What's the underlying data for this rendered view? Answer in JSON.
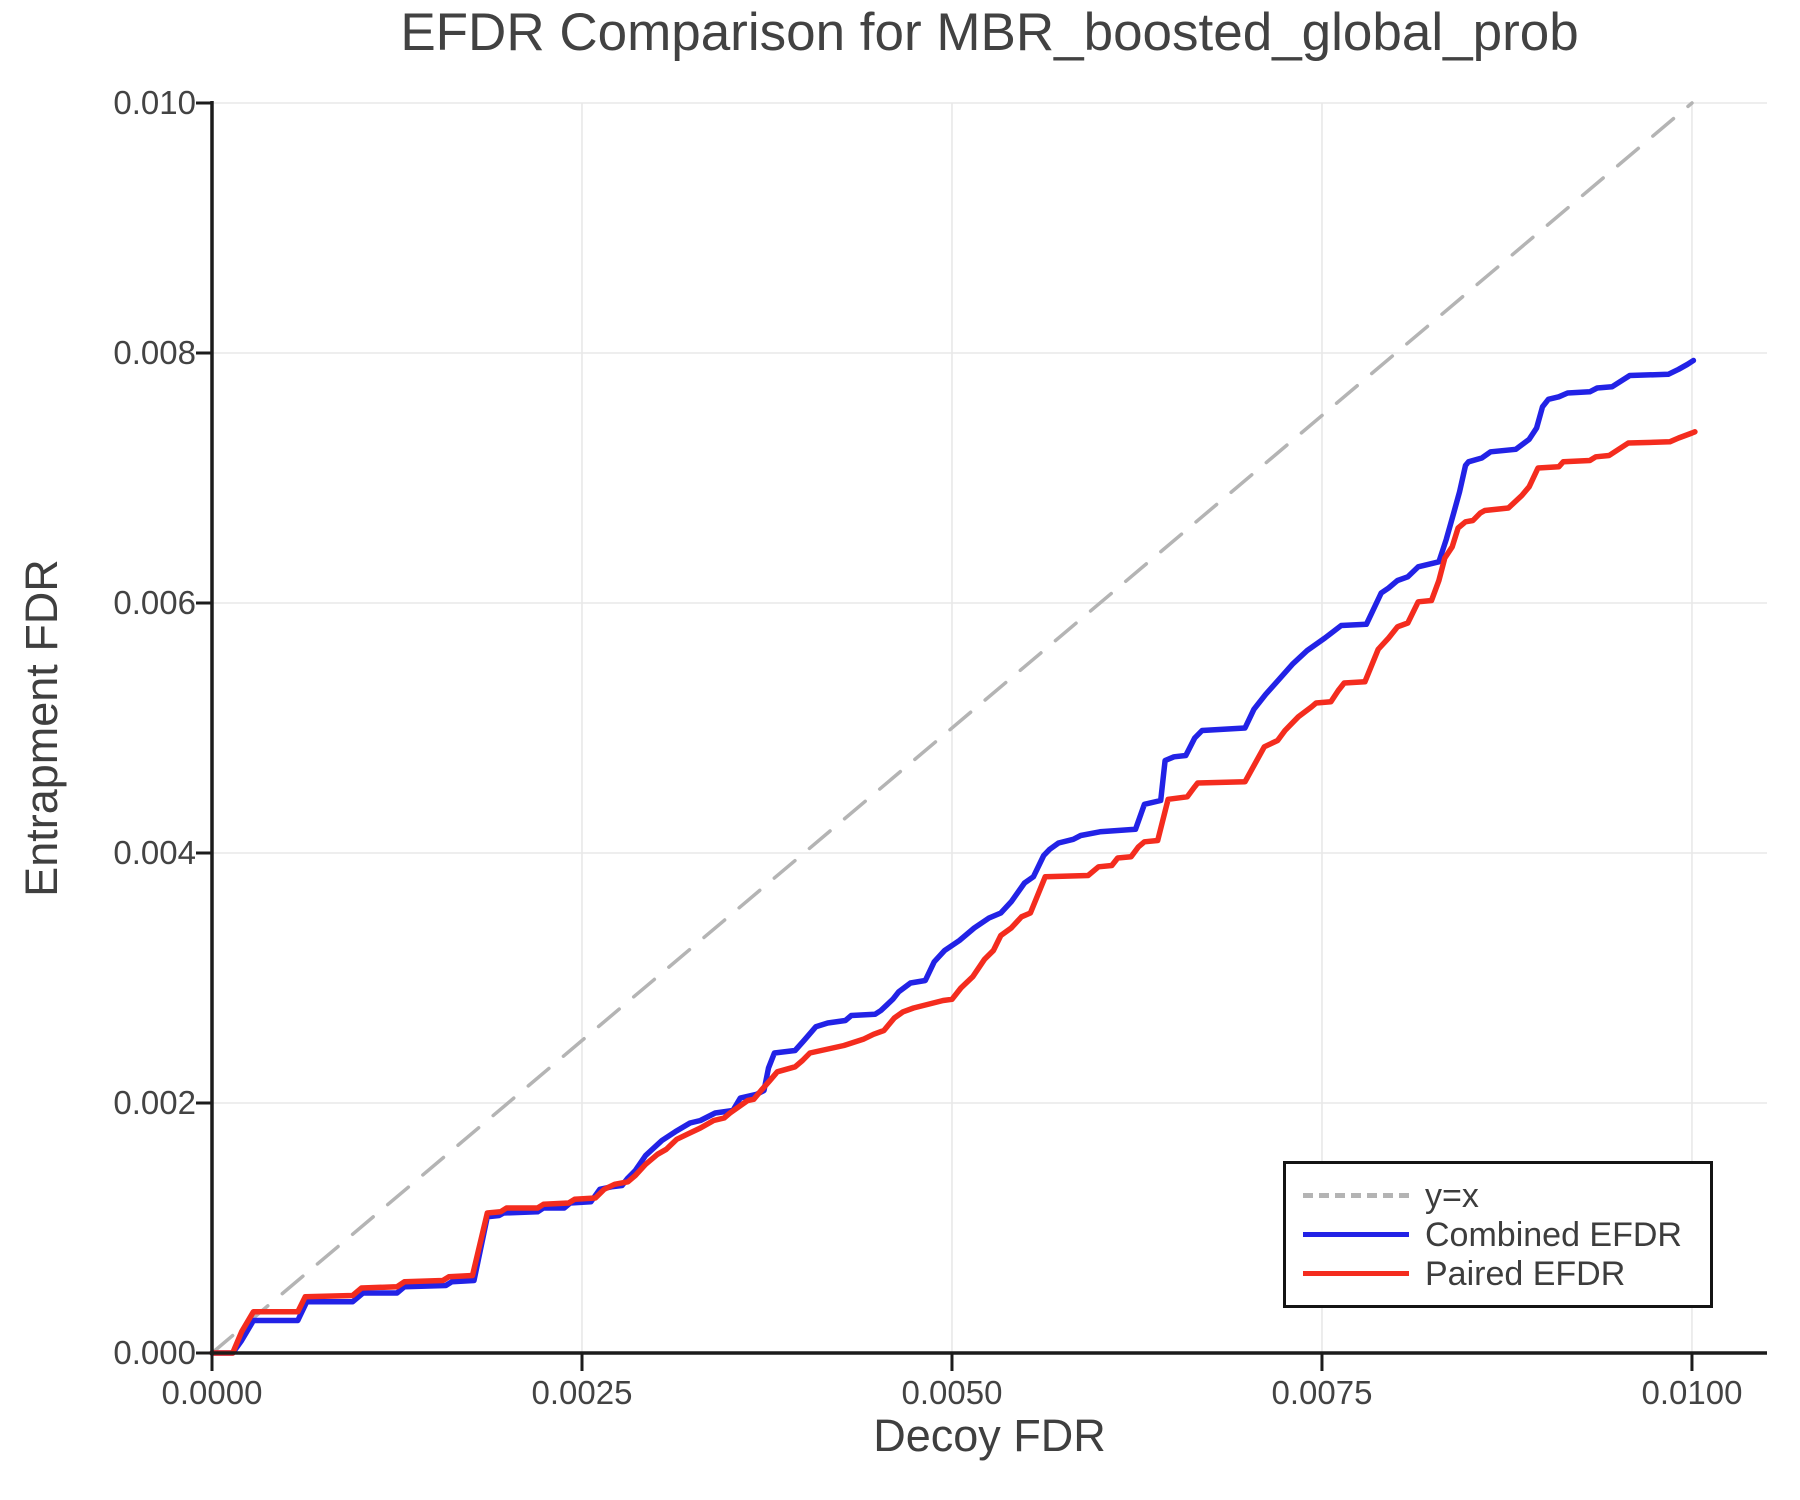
{
  "title": "EFDR Comparison for MBR_boosted_global_prob",
  "axes": {
    "x_label": "Decoy FDR",
    "y_label": "Entrapment FDR"
  },
  "colors": {
    "combined": "#2222e6",
    "paired": "#f42c1e",
    "identity": "#b4b4b4",
    "grid": "#e8e8e8",
    "spine": "#1c1c1c",
    "text": "#3f3f3f"
  },
  "legend": {
    "items": [
      {
        "label": "y=x",
        "color": "#b4b4b4",
        "style": "dashed"
      },
      {
        "label": "Combined EFDR",
        "color": "#2222e6",
        "style": "solid"
      },
      {
        "label": "Paired EFDR",
        "color": "#f42c1e",
        "style": "solid"
      }
    ]
  },
  "chart_data": {
    "type": "line",
    "title": "EFDR Comparison for MBR_boosted_global_prob",
    "xlabel": "Decoy FDR",
    "ylabel": "Entrapment FDR",
    "xlim": [
      0,
      0.010507
    ],
    "ylim": [
      0,
      0.01
    ],
    "grid": true,
    "legend_position": "lower right",
    "x_ticks": [
      0,
      0.0025,
      0.005,
      0.0075,
      0.01
    ],
    "x_tick_labels": [
      "0.0000",
      "0.0025",
      "0.0050",
      "0.0075",
      "0.0100"
    ],
    "y_ticks": [
      0,
      0.002,
      0.004,
      0.006,
      0.008,
      0.01
    ],
    "y_tick_labels": [
      "0.000",
      "0.002",
      "0.004",
      "0.006",
      "0.008",
      "0.010"
    ],
    "series": [
      {
        "name": "y=x",
        "style": "dashed",
        "color": "#b4b4b4",
        "width": 3.5,
        "points": [
          [
            0,
            0
          ],
          [
            0.01,
            0.01
          ]
        ]
      },
      {
        "name": "Combined EFDR",
        "style": "solid",
        "color": "#2222e6",
        "width": 5.5,
        "points": [
          [
            0,
            0
          ],
          [
            0.00014,
            0
          ],
          [
            0.0002,
            0.0001
          ],
          [
            0.00028,
            0.00026
          ],
          [
            0.00058,
            0.00026
          ],
          [
            0.00064,
            0.00041
          ],
          [
            0.00095,
            0.00041
          ],
          [
            0.00102,
            0.00048
          ],
          [
            0.00125,
            0.00048
          ],
          [
            0.0013,
            0.00053
          ],
          [
            0.00158,
            0.00054
          ],
          [
            0.00162,
            0.00057
          ],
          [
            0.00177,
            0.00058
          ],
          [
            0.00186,
            0.00109
          ],
          [
            0.00194,
            0.0011
          ],
          [
            0.00197,
            0.00112
          ],
          [
            0.0022,
            0.00113
          ],
          [
            0.00224,
            0.00116
          ],
          [
            0.00238,
            0.00116
          ],
          [
            0.00242,
            0.0012
          ],
          [
            0.00256,
            0.00121
          ],
          [
            0.00262,
            0.00131
          ],
          [
            0.0027,
            0.00133
          ],
          [
            0.00277,
            0.00134
          ],
          [
            0.00281,
            0.0014
          ],
          [
            0.00286,
            0.00146
          ],
          [
            0.00293,
            0.00158
          ],
          [
            0.00304,
            0.0017
          ],
          [
            0.00313,
            0.00177
          ],
          [
            0.00323,
            0.00184
          ],
          [
            0.0033,
            0.00186
          ],
          [
            0.0034,
            0.00192
          ],
          [
            0.00352,
            0.00194
          ],
          [
            0.00357,
            0.00204
          ],
          [
            0.00368,
            0.00207
          ],
          [
            0.00373,
            0.0021
          ],
          [
            0.00376,
            0.00228
          ],
          [
            0.0038,
            0.0024
          ],
          [
            0.00394,
            0.00242
          ],
          [
            0.004,
            0.0025
          ],
          [
            0.00408,
            0.00261
          ],
          [
            0.00416,
            0.00264
          ],
          [
            0.00428,
            0.00266
          ],
          [
            0.00432,
            0.0027
          ],
          [
            0.00448,
            0.00271
          ],
          [
            0.00452,
            0.00274
          ],
          [
            0.0046,
            0.00283
          ],
          [
            0.00464,
            0.00289
          ],
          [
            0.00472,
            0.00296
          ],
          [
            0.00482,
            0.00298
          ],
          [
            0.00488,
            0.00313
          ],
          [
            0.00495,
            0.00322
          ],
          [
            0.00505,
            0.0033
          ],
          [
            0.00515,
            0.0034
          ],
          [
            0.00525,
            0.00348
          ],
          [
            0.00533,
            0.00352
          ],
          [
            0.0054,
            0.00361
          ],
          [
            0.00549,
            0.00376
          ],
          [
            0.00555,
            0.00381
          ],
          [
            0.00562,
            0.00398
          ],
          [
            0.00566,
            0.00403
          ],
          [
            0.00572,
            0.00408
          ],
          [
            0.00582,
            0.00411
          ],
          [
            0.00587,
            0.00414
          ],
          [
            0.006,
            0.00417
          ],
          [
            0.00624,
            0.00419
          ],
          [
            0.0063,
            0.00439
          ],
          [
            0.00641,
            0.00442
          ],
          [
            0.00644,
            0.00474
          ],
          [
            0.0065,
            0.00477
          ],
          [
            0.00658,
            0.00478
          ],
          [
            0.00664,
            0.00492
          ],
          [
            0.00669,
            0.00498
          ],
          [
            0.00698,
            0.005
          ],
          [
            0.00704,
            0.00515
          ],
          [
            0.00712,
            0.00527
          ],
          [
            0.00721,
            0.00539
          ],
          [
            0.0073,
            0.00551
          ],
          [
            0.0074,
            0.00562
          ],
          [
            0.00752,
            0.00572
          ],
          [
            0.00763,
            0.00582
          ],
          [
            0.0078,
            0.00583
          ],
          [
            0.0079,
            0.00608
          ],
          [
            0.00795,
            0.00612
          ],
          [
            0.00801,
            0.00618
          ],
          [
            0.00808,
            0.00621
          ],
          [
            0.00815,
            0.00629
          ],
          [
            0.00829,
            0.00633
          ],
          [
            0.00834,
            0.00651
          ],
          [
            0.00839,
            0.00672
          ],
          [
            0.00843,
            0.00689
          ],
          [
            0.00847,
            0.0071
          ],
          [
            0.00849,
            0.00713
          ],
          [
            0.00858,
            0.00716
          ],
          [
            0.00864,
            0.00721
          ],
          [
            0.00881,
            0.00723
          ],
          [
            0.0089,
            0.00731
          ],
          [
            0.00895,
            0.0074
          ],
          [
            0.00899,
            0.00757
          ],
          [
            0.00903,
            0.00763
          ],
          [
            0.0091,
            0.00765
          ],
          [
            0.00916,
            0.00768
          ],
          [
            0.00931,
            0.00769
          ],
          [
            0.00936,
            0.00772
          ],
          [
            0.00946,
            0.00773
          ],
          [
            0.00958,
            0.00782
          ],
          [
            0.00984,
            0.00783
          ],
          [
            0.00991,
            0.00787
          ],
          [
            0.00997,
            0.00791
          ],
          [
            0.01001,
            0.00794
          ]
        ]
      },
      {
        "name": "Paired EFDR",
        "style": "solid",
        "color": "#f42c1e",
        "width": 5.5,
        "points": [
          [
            0,
            0
          ],
          [
            0.00014,
            0
          ],
          [
            0.0002,
            0.00017
          ],
          [
            0.00028,
            0.00033
          ],
          [
            0.00058,
            0.00033
          ],
          [
            0.00063,
            0.00045
          ],
          [
            0.00095,
            0.00046
          ],
          [
            0.00101,
            0.00052
          ],
          [
            0.00125,
            0.00053
          ],
          [
            0.0013,
            0.00057
          ],
          [
            0.00156,
            0.00058
          ],
          [
            0.0016,
            0.00061
          ],
          [
            0.00176,
            0.00062
          ],
          [
            0.00186,
            0.00112
          ],
          [
            0.00195,
            0.00113
          ],
          [
            0.00199,
            0.00116
          ],
          [
            0.0022,
            0.00116
          ],
          [
            0.00224,
            0.00119
          ],
          [
            0.00241,
            0.0012
          ],
          [
            0.00245,
            0.00123
          ],
          [
            0.00259,
            0.00124
          ],
          [
            0.00265,
            0.00131
          ],
          [
            0.00272,
            0.00135
          ],
          [
            0.00281,
            0.00137
          ],
          [
            0.00286,
            0.00142
          ],
          [
            0.00293,
            0.00151
          ],
          [
            0.00301,
            0.00159
          ],
          [
            0.00307,
            0.00163
          ],
          [
            0.00314,
            0.00171
          ],
          [
            0.00321,
            0.00175
          ],
          [
            0.0033,
            0.0018
          ],
          [
            0.00339,
            0.00186
          ],
          [
            0.00346,
            0.00188
          ],
          [
            0.0035,
            0.00192
          ],
          [
            0.00362,
            0.00202
          ],
          [
            0.00366,
            0.00203
          ],
          [
            0.00371,
            0.0021
          ],
          [
            0.00377,
            0.00218
          ],
          [
            0.00382,
            0.00225
          ],
          [
            0.00388,
            0.00227
          ],
          [
            0.00394,
            0.00229
          ],
          [
            0.00399,
            0.00234
          ],
          [
            0.00404,
            0.0024
          ],
          [
            0.00427,
            0.00246
          ],
          [
            0.0044,
            0.00251
          ],
          [
            0.00447,
            0.00255
          ],
          [
            0.00454,
            0.00258
          ],
          [
            0.00461,
            0.00268
          ],
          [
            0.00467,
            0.00273
          ],
          [
            0.00474,
            0.00276
          ],
          [
            0.00494,
            0.00282
          ],
          [
            0.005,
            0.00283
          ],
          [
            0.00506,
            0.00292
          ],
          [
            0.00514,
            0.00301
          ],
          [
            0.00522,
            0.00315
          ],
          [
            0.00528,
            0.00322
          ],
          [
            0.00533,
            0.00334
          ],
          [
            0.0054,
            0.0034
          ],
          [
            0.00547,
            0.00349
          ],
          [
            0.00553,
            0.00352
          ],
          [
            0.00563,
            0.00381
          ],
          [
            0.00592,
            0.00382
          ],
          [
            0.00599,
            0.00389
          ],
          [
            0.00608,
            0.0039
          ],
          [
            0.00612,
            0.00396
          ],
          [
            0.00621,
            0.00397
          ],
          [
            0.00626,
            0.00405
          ],
          [
            0.0063,
            0.00409
          ],
          [
            0.00639,
            0.0041
          ],
          [
            0.00646,
            0.00443
          ],
          [
            0.00659,
            0.00445
          ],
          [
            0.00664,
            0.00453
          ],
          [
            0.00666,
            0.00456
          ],
          [
            0.00698,
            0.00457
          ],
          [
            0.00711,
            0.00485
          ],
          [
            0.0072,
            0.0049
          ],
          [
            0.00725,
            0.00498
          ],
          [
            0.00734,
            0.00509
          ],
          [
            0.00743,
            0.00517
          ],
          [
            0.00746,
            0.0052
          ],
          [
            0.00756,
            0.00521
          ],
          [
            0.00761,
            0.0053
          ],
          [
            0.00765,
            0.00536
          ],
          [
            0.00779,
            0.00537
          ],
          [
            0.00788,
            0.00563
          ],
          [
            0.00795,
            0.00572
          ],
          [
            0.00801,
            0.00581
          ],
          [
            0.00808,
            0.00584
          ],
          [
            0.00815,
            0.00601
          ],
          [
            0.00824,
            0.00602
          ],
          [
            0.00829,
            0.00618
          ],
          [
            0.00833,
            0.00636
          ],
          [
            0.00838,
            0.00645
          ],
          [
            0.00842,
            0.0066
          ],
          [
            0.00847,
            0.00665
          ],
          [
            0.00852,
            0.00666
          ],
          [
            0.00857,
            0.00672
          ],
          [
            0.0086,
            0.00674
          ],
          [
            0.00876,
            0.00676
          ],
          [
            0.00885,
            0.00686
          ],
          [
            0.0089,
            0.00693
          ],
          [
            0.00896,
            0.00708
          ],
          [
            0.0091,
            0.00709
          ],
          [
            0.00913,
            0.00713
          ],
          [
            0.00931,
            0.00714
          ],
          [
            0.00935,
            0.00717
          ],
          [
            0.00944,
            0.00718
          ],
          [
            0.00957,
            0.00728
          ],
          [
            0.00985,
            0.00729
          ],
          [
            0.00991,
            0.00732
          ],
          [
            0.01,
            0.00736
          ],
          [
            0.01002,
            0.00737
          ]
        ]
      }
    ]
  }
}
